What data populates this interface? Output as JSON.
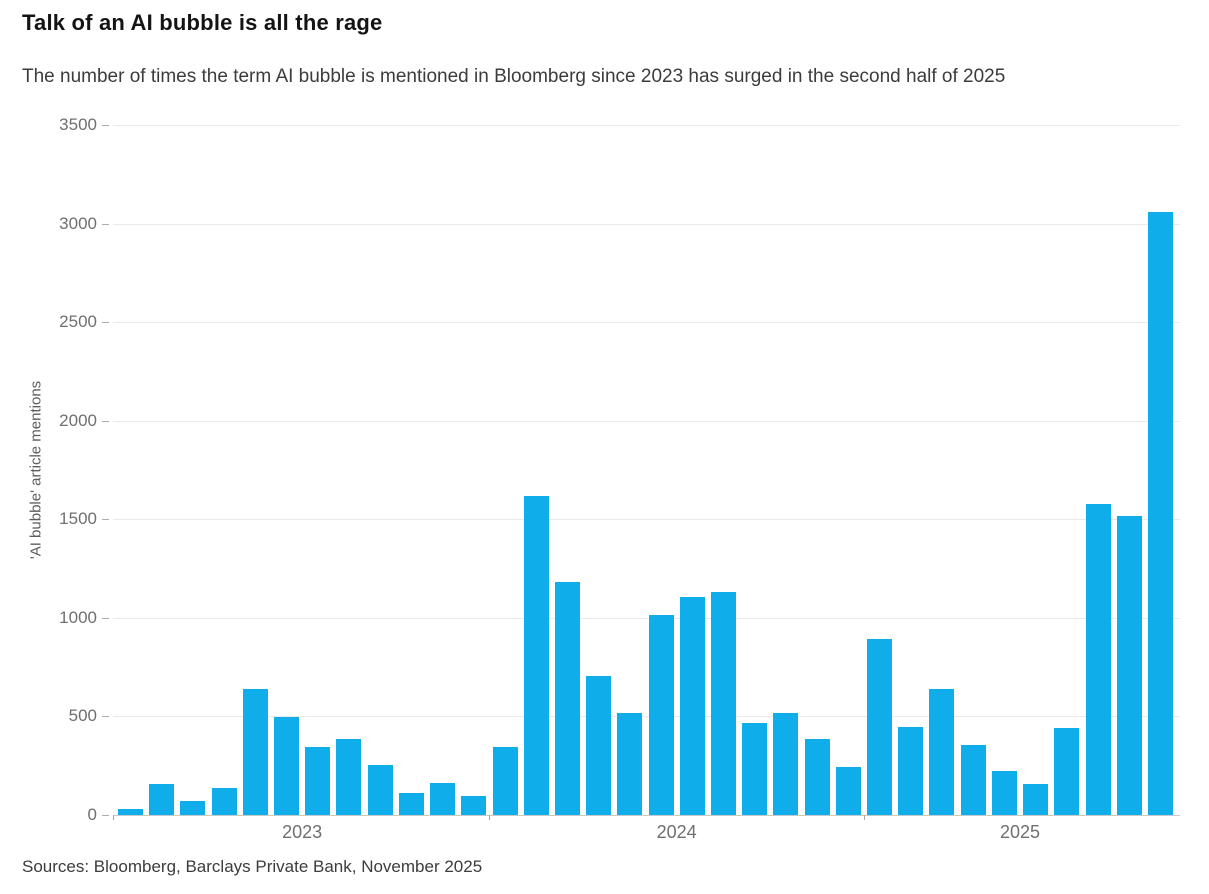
{
  "header": {
    "title": "Talk of an AI bubble is all the rage",
    "subtitle": "The number of times the term AI bubble is mentioned in Bloomberg since 2023 has surged in the second half of 2025"
  },
  "footer": {
    "source": "Sources: Bloomberg, Barclays Private Bank, November 2025"
  },
  "chart_data": {
    "type": "bar",
    "title": "Talk of an AI bubble is all the rage",
    "subtitle": "The number of times the term AI bubble is mentioned in Bloomberg since 2023 has surged in the second half of 2025",
    "ylabel": "'AI bubble' article mentions",
    "xlabel": "",
    "ylim": [
      0,
      3500
    ],
    "yticks": [
      0,
      500,
      1000,
      1500,
      2000,
      2500,
      3000,
      3500
    ],
    "grid": true,
    "legend": "none",
    "bar_color": "#0fade9",
    "axis_text_color": "#6f6f6f",
    "years": [
      {
        "label": "2023",
        "values": [
          30,
          155,
          70,
          135,
          640,
          495,
          345,
          385,
          255,
          110,
          160,
          95
        ]
      },
      {
        "label": "2024",
        "values": [
          345,
          1620,
          1180,
          705,
          520,
          1015,
          1105,
          1130,
          465,
          515,
          385,
          245
        ]
      },
      {
        "label": "2025",
        "values": [
          895,
          445,
          640,
          355,
          225,
          155,
          440,
          1580,
          1515,
          3060
        ]
      }
    ]
  }
}
